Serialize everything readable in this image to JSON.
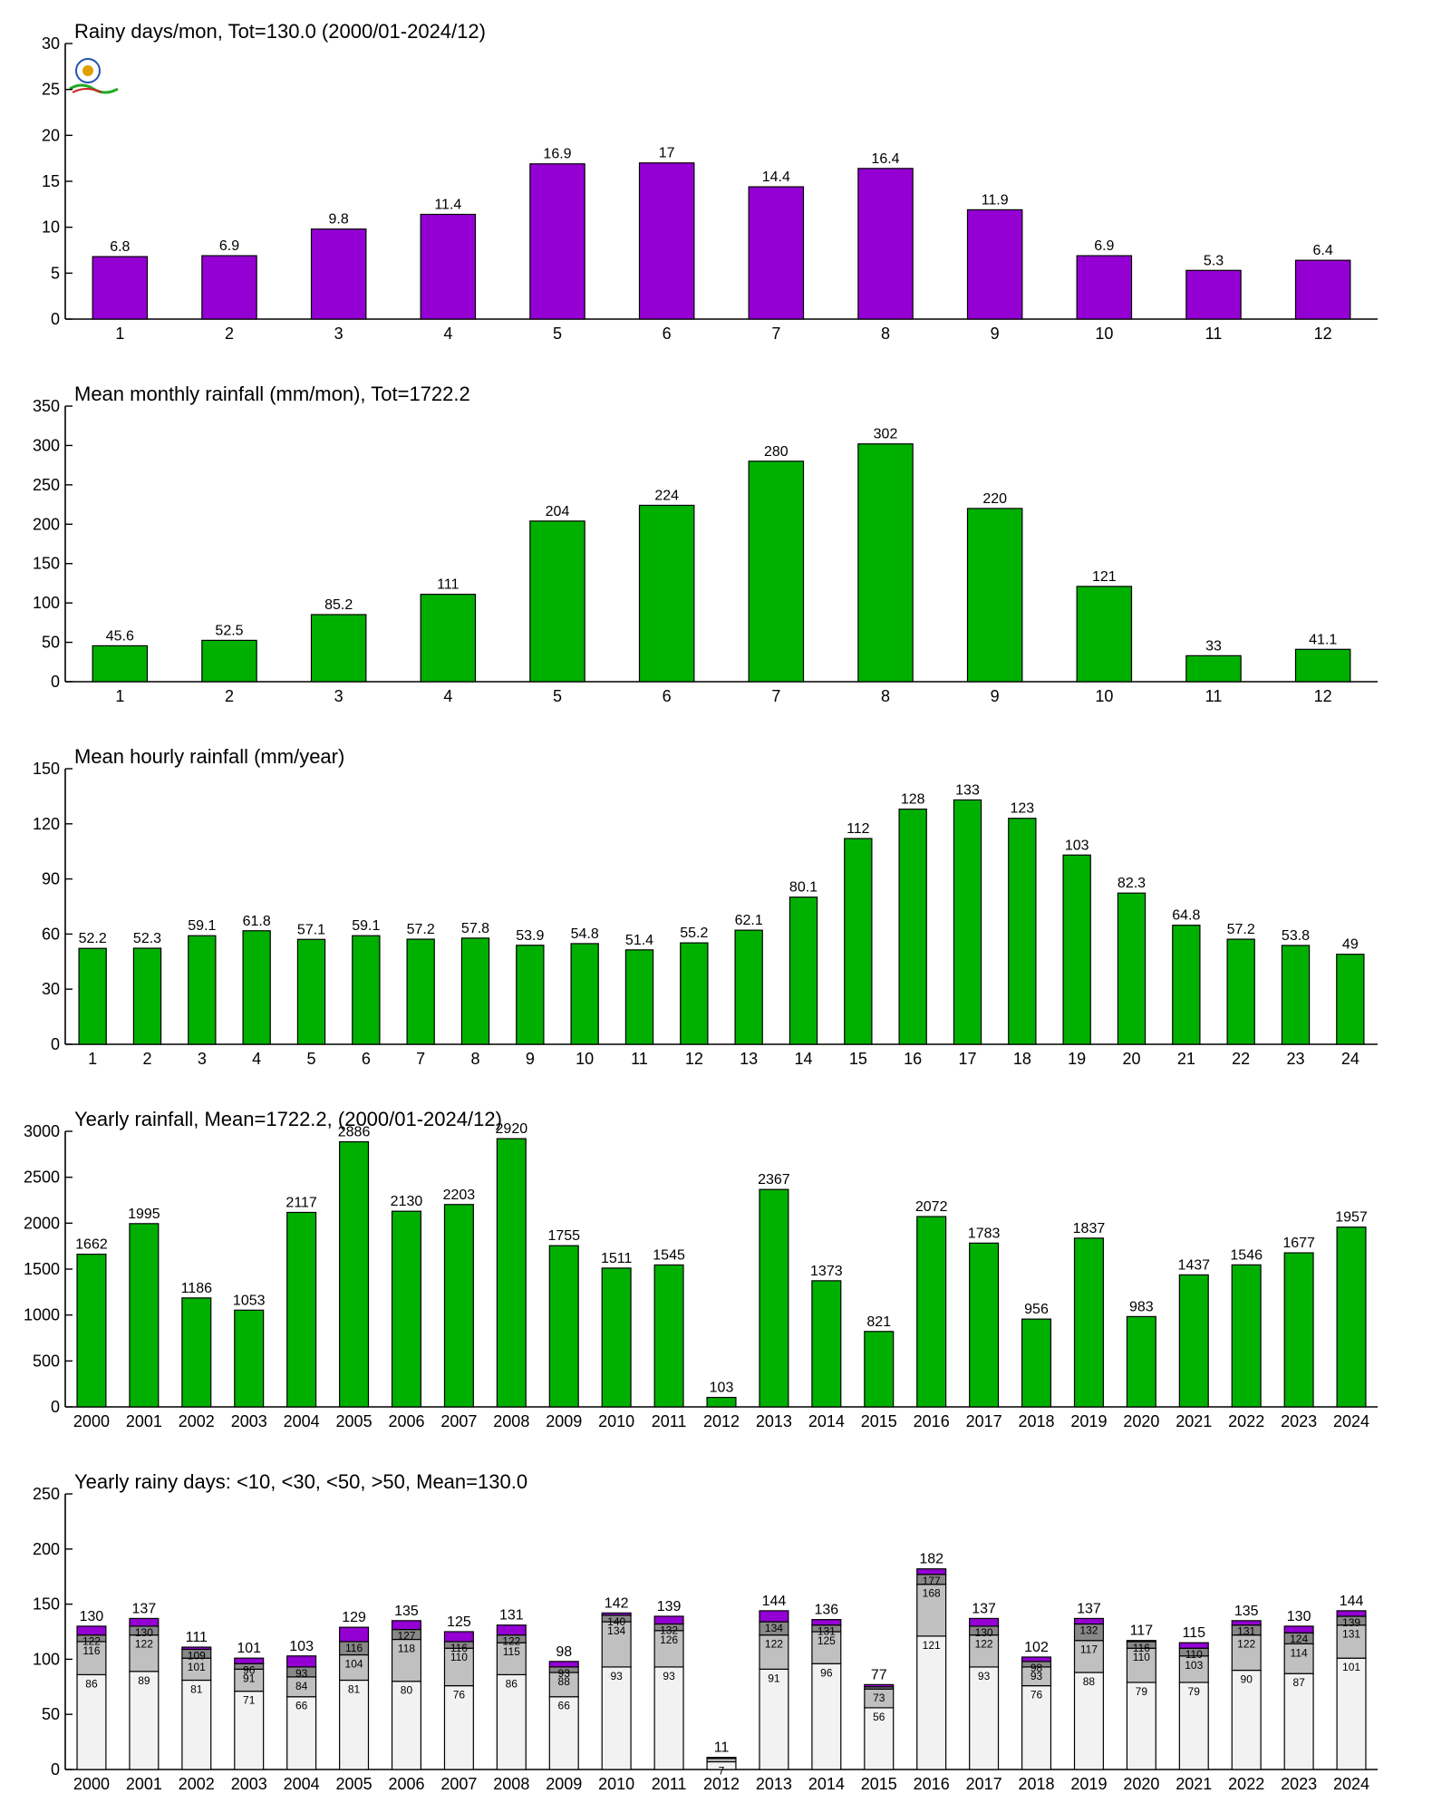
{
  "colors": {
    "purple": "#9400D3",
    "green": "#00B000",
    "seg_lt10": "#f2f2f2",
    "seg_lt30": "#c0c0c0",
    "seg_lt50": "#888888",
    "seg_gt50": "#9400D3"
  },
  "logo": {
    "icon": "lab-logo-icon"
  },
  "chart_data": [
    {
      "id": "rainy-days",
      "type": "bar",
      "title": "Rainy days/mon, Tot=130.0 (2000/01-2024/12)",
      "categories": [
        "1",
        "2",
        "3",
        "4",
        "5",
        "6",
        "7",
        "8",
        "9",
        "10",
        "11",
        "12"
      ],
      "values": [
        6.8,
        6.9,
        9.8,
        11.4,
        16.9,
        17,
        14.4,
        16.4,
        11.9,
        6.9,
        5.3,
        6.4
      ],
      "value_labels": [
        "6.8",
        "6.9",
        "9.8",
        "11.4",
        "16.9",
        "17",
        "14.4",
        "16.4",
        "11.9",
        "6.9",
        "5.3",
        "6.4"
      ],
      "ylim": [
        0,
        30
      ],
      "yticks": [
        "0",
        "5",
        "10",
        "15",
        "20",
        "25",
        "30"
      ],
      "color": "#9400D3"
    },
    {
      "id": "monthly-rainfall",
      "type": "bar",
      "title": "Mean monthly rainfall (mm/mon), Tot=1722.2",
      "categories": [
        "1",
        "2",
        "3",
        "4",
        "5",
        "6",
        "7",
        "8",
        "9",
        "10",
        "11",
        "12"
      ],
      "values": [
        45.6,
        52.5,
        85.2,
        111,
        204,
        224,
        280,
        302,
        220,
        121,
        33,
        41.1
      ],
      "value_labels": [
        "45.6",
        "52.5",
        "85.2",
        "111",
        "204",
        "224",
        "280",
        "302",
        "220",
        "121",
        "33",
        "41.1"
      ],
      "ylim": [
        0,
        350
      ],
      "yticks": [
        "0",
        "50",
        "100",
        "150",
        "200",
        "250",
        "300",
        "350"
      ],
      "color": "#00B000"
    },
    {
      "id": "hourly-rainfall",
      "type": "bar",
      "title": "Mean hourly rainfall (mm/year)",
      "categories": [
        "1",
        "2",
        "3",
        "4",
        "5",
        "6",
        "7",
        "8",
        "9",
        "10",
        "11",
        "12",
        "13",
        "14",
        "15",
        "16",
        "17",
        "18",
        "19",
        "20",
        "21",
        "22",
        "23",
        "24"
      ],
      "values": [
        52.2,
        52.3,
        59.1,
        61.8,
        57.1,
        59.1,
        57.2,
        57.8,
        53.9,
        54.8,
        51.4,
        55.2,
        62.1,
        80.1,
        112,
        128,
        133,
        123,
        103,
        82.3,
        64.8,
        57.2,
        53.8,
        49
      ],
      "value_labels": [
        "52.2",
        "52.3",
        "59.1",
        "61.8",
        "57.1",
        "59.1",
        "57.2",
        "57.8",
        "53.9",
        "54.8",
        "51.4",
        "55.2",
        "62.1",
        "80.1",
        "112",
        "128",
        "133",
        "123",
        "103",
        "82.3",
        "64.8",
        "57.2",
        "53.8",
        "49"
      ],
      "ylim": [
        0,
        150
      ],
      "yticks": [
        "0",
        "30",
        "60",
        "90",
        "120",
        "150"
      ],
      "color": "#00B000"
    },
    {
      "id": "yearly-rainfall",
      "type": "bar",
      "title": "Yearly rainfall, Mean=1722.2, (2000/01-2024/12)",
      "categories": [
        "2000",
        "2001",
        "2002",
        "2003",
        "2004",
        "2005",
        "2006",
        "2007",
        "2008",
        "2009",
        "2010",
        "2011",
        "2012",
        "2013",
        "2014",
        "2015",
        "2016",
        "2017",
        "2018",
        "2019",
        "2020",
        "2021",
        "2022",
        "2023",
        "2024"
      ],
      "values": [
        1662,
        1995,
        1186,
        1053,
        2117,
        2886,
        2130,
        2203,
        2920,
        1755,
        1511,
        1545,
        103,
        2367,
        1373,
        821,
        2072,
        1783,
        956,
        1837,
        983,
        1437,
        1546,
        1677,
        1957
      ],
      "value_labels": [
        "1662",
        "1995",
        "1186",
        "1053",
        "2117",
        "2886",
        "2130",
        "2203",
        "2920",
        "1755",
        "1511",
        "1545",
        "103",
        "2367",
        "1373",
        "821",
        "2072",
        "1783",
        "956",
        "1837",
        "983",
        "1437",
        "1546",
        "1677",
        "1957"
      ],
      "ylim": [
        0,
        3000
      ],
      "yticks": [
        "0",
        "500",
        "1000",
        "1500",
        "2000",
        "2500",
        "3000"
      ],
      "color": "#00B000"
    },
    {
      "id": "yearly-rainy-days",
      "type": "bar",
      "stacked": true,
      "title": "Yearly rainy days: <10, <30, <50, >50, Mean=130.0",
      "categories": [
        "2000",
        "2001",
        "2002",
        "2003",
        "2004",
        "2005",
        "2006",
        "2007",
        "2008",
        "2009",
        "2010",
        "2011",
        "2012",
        "2013",
        "2014",
        "2015",
        "2016",
        "2017",
        "2018",
        "2019",
        "2020",
        "2021",
        "2022",
        "2023",
        "2024"
      ],
      "cum_lt10": [
        86,
        89,
        81,
        71,
        66,
        81,
        80,
        76,
        86,
        66,
        93,
        93,
        7,
        91,
        96,
        56,
        121,
        93,
        76,
        88,
        79,
        79,
        90,
        87,
        101
      ],
      "cum_lt30": [
        116,
        122,
        101,
        91,
        84,
        104,
        118,
        110,
        115,
        88,
        134,
        126,
        10,
        122,
        125,
        73,
        168,
        122,
        93,
        117,
        110,
        103,
        122,
        114,
        131
      ],
      "cum_lt50": [
        122,
        130,
        109,
        96,
        93,
        116,
        127,
        116,
        122,
        93,
        140,
        132,
        10,
        134,
        131,
        75,
        177,
        130,
        98,
        132,
        116,
        110,
        131,
        124,
        139
      ],
      "totals": [
        130,
        137,
        111,
        101,
        103,
        129,
        135,
        125,
        131,
        98,
        142,
        139,
        11,
        144,
        136,
        77,
        182,
        137,
        102,
        137,
        117,
        115,
        135,
        130,
        144
      ],
      "total_labels": [
        "130",
        "137",
        "111",
        "101",
        "103",
        "129",
        "135",
        "125",
        "131",
        "98",
        "142",
        "139",
        "11",
        "144",
        "136",
        "77",
        "182",
        "137",
        "102",
        "137",
        "117",
        "115",
        "135",
        "130",
        "144"
      ],
      "lt10_labels": [
        "86",
        "89",
        "81",
        "71",
        "66",
        "81",
        "80",
        "76",
        "86",
        "66",
        "93",
        "93",
        "7",
        "91",
        "96",
        "56",
        "121",
        "93",
        "76",
        "88",
        "79",
        "79",
        "90",
        "87",
        "101"
      ],
      "lt30_labels": [
        "116",
        "122",
        "101",
        "91",
        "84",
        "104",
        "118",
        "110",
        "115",
        "88",
        "134",
        "126",
        "",
        "122",
        "125",
        "73",
        "168",
        "122",
        "93",
        "117",
        "110",
        "103",
        "122",
        "114",
        "131"
      ],
      "lt50_labels": [
        "122",
        "130",
        "109",
        "96",
        "93",
        "116",
        "127",
        "116",
        "122",
        "93",
        "140",
        "132",
        "",
        "134",
        "131",
        "",
        "177",
        "130",
        "98",
        "132",
        "116",
        "110",
        "131",
        "124",
        "139"
      ],
      "ylim": [
        0,
        250
      ],
      "yticks": [
        "0",
        "50",
        "100",
        "150",
        "200",
        "250"
      ]
    }
  ]
}
